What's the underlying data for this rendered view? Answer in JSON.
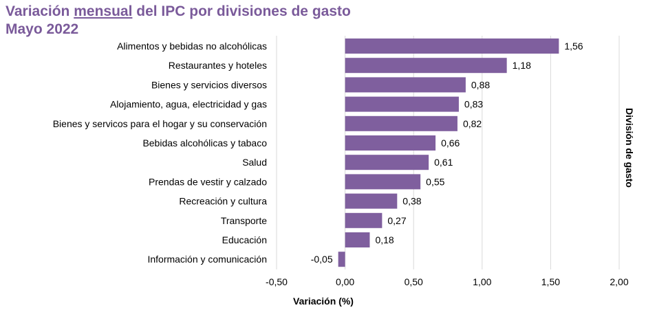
{
  "title": {
    "part1": "Variación ",
    "underlined": "mensual",
    "part2": " del IPC por divisiones de gasto",
    "subtitle": "Mayo 2022"
  },
  "colors": {
    "title": "#7a5a9a",
    "bar": "#7f5f9e",
    "grid": "#d9d9d9"
  },
  "chart_data": {
    "type": "bar",
    "orientation": "horizontal",
    "categories": [
      "Alimentos y bebidas no alcohólicas",
      "Restaurantes y hoteles",
      "Bienes y servicios diversos",
      "Alojamiento, agua, electricidad y gas",
      "Bienes y servicos para el hogar y su conservación",
      "Bebidas alcohólicas y tabaco",
      "Salud",
      "Prendas de vestir y calzado",
      "Recreación y cultura",
      "Transporte",
      "Educación",
      "Información y comunicación"
    ],
    "values": [
      1.56,
      1.18,
      0.88,
      0.83,
      0.82,
      0.66,
      0.61,
      0.55,
      0.38,
      0.27,
      0.18,
      -0.05
    ],
    "value_labels": [
      "1,56",
      "1,18",
      "0,88",
      "0,83",
      "0,82",
      "0,66",
      "0,61",
      "0,55",
      "0,38",
      "0,27",
      "0,18",
      "-0,05"
    ],
    "xlim": [
      -0.5,
      2.0
    ],
    "xticks": [
      -0.5,
      0,
      0.5,
      1.0,
      1.5,
      2.0
    ],
    "xtick_labels": [
      "-0,50",
      "0,00",
      "0,50",
      "1,00",
      "1,50",
      "2,00"
    ],
    "xlabel": "Variación (%)",
    "ylabel": "División de gasto",
    "grid": "vertical"
  }
}
